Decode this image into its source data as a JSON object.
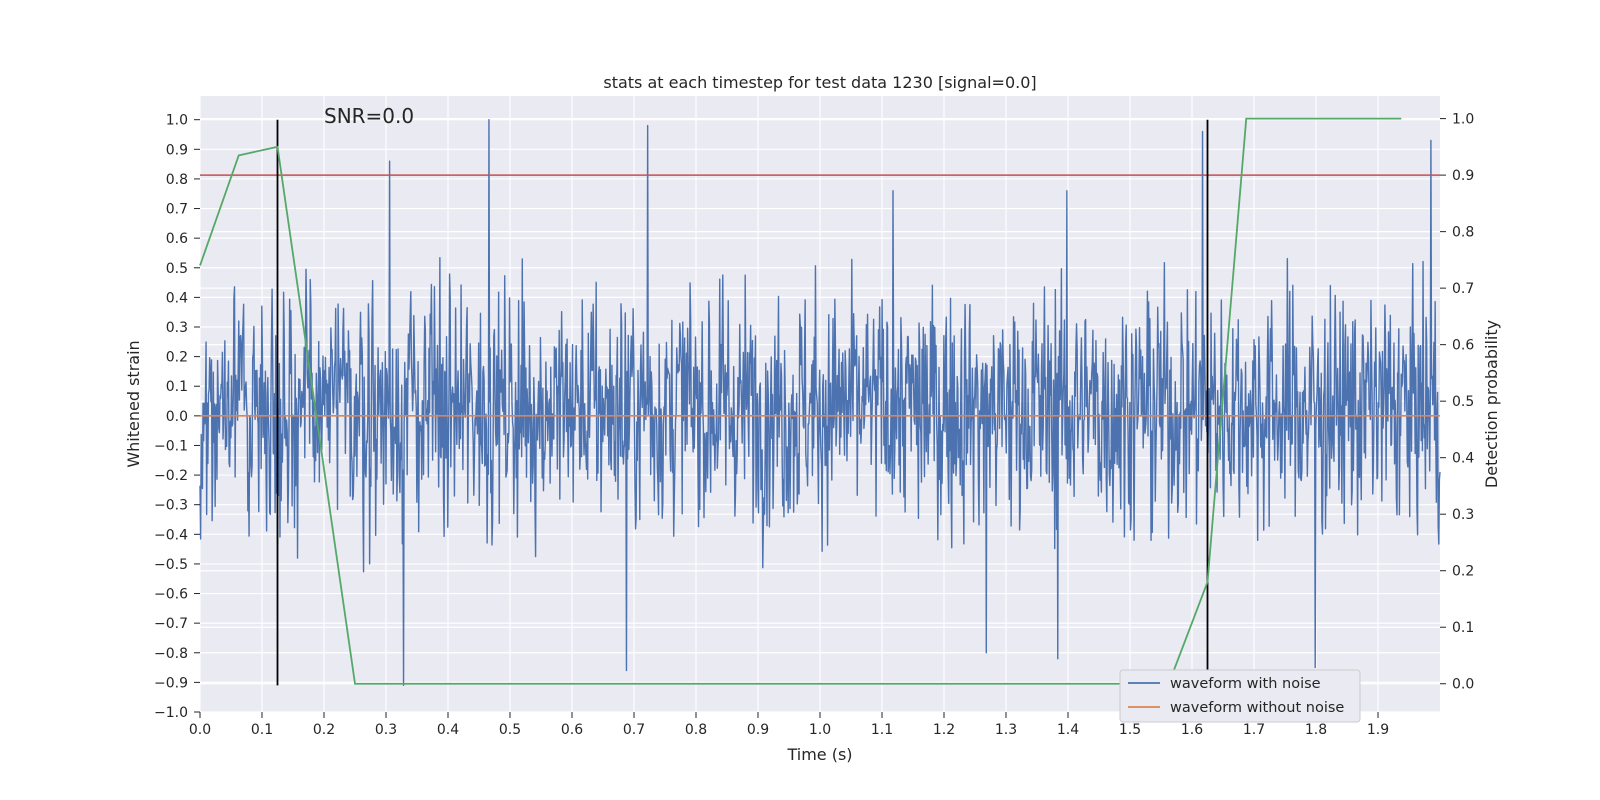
{
  "chart_data": {
    "type": "line",
    "title": "stats at each timestep for test data 1230 [signal=0.0]",
    "annotation": "SNR=0.0",
    "xlabel": "Time (s)",
    "ylabel": "Whitened strain",
    "y2label": "Detection probability",
    "xlim": [
      0.0,
      2.0
    ],
    "ylim": [
      -1.0,
      1.08
    ],
    "y2lim": [
      -0.05,
      1.04
    ],
    "xticks": [
      "0.0",
      "0.1",
      "0.2",
      "0.3",
      "0.4",
      "0.5",
      "0.6",
      "0.7",
      "0.8",
      "0.9",
      "1.0",
      "1.1",
      "1.2",
      "1.3",
      "1.4",
      "1.5",
      "1.6",
      "1.7",
      "1.8",
      "1.9"
    ],
    "yticks": [
      "1.0",
      "0.9",
      "0.8",
      "0.7",
      "0.6",
      "0.5",
      "0.4",
      "0.3",
      "0.2",
      "0.1",
      "0.0",
      "−0.1",
      "−0.2",
      "−0.3",
      "−0.4",
      "−0.5",
      "−0.6",
      "−0.7",
      "−0.8",
      "−0.9",
      "−1.0"
    ],
    "y2ticks": [
      "1.0",
      "0.9",
      "0.8",
      "0.7",
      "0.6",
      "0.5",
      "0.4",
      "0.3",
      "0.2",
      "0.1",
      "0.0"
    ],
    "legend": [
      "waveform with noise",
      "waveform without noise"
    ],
    "legend_loc": "lower right",
    "grid": true,
    "colors": {
      "noisy": "#4c72b0",
      "clean": "#dd8452",
      "prob": "#55a868",
      "threshold": "#c44e52",
      "marker": "#000000",
      "panel_bg": "#eaeaf2",
      "grid": "#ffffff"
    },
    "series": [
      {
        "name": "waveform with noise",
        "axis": "left",
        "n_samples": 2048,
        "value_range": [
          -0.91,
          1.0
        ],
        "peaks": [
          {
            "x": 0.466,
            "y": 1.0
          },
          {
            "x": 0.722,
            "y": 0.98
          },
          {
            "x": 1.617,
            "y": 0.96
          },
          {
            "x": 1.985,
            "y": 0.93
          },
          {
            "x": 0.306,
            "y": 0.86
          },
          {
            "x": 1.398,
            "y": 0.76
          },
          {
            "x": 1.118,
            "y": 0.76
          },
          {
            "x": 0.328,
            "y": -0.91
          },
          {
            "x": 0.688,
            "y": -0.86
          },
          {
            "x": 1.799,
            "y": -0.85
          },
          {
            "x": 1.383,
            "y": -0.82
          },
          {
            "x": 1.268,
            "y": -0.8
          }
        ]
      },
      {
        "name": "waveform without noise",
        "axis": "left",
        "x": [
          0.0,
          2.0
        ],
        "y": [
          0.0,
          0.0
        ]
      },
      {
        "name": "detection probability",
        "axis": "right",
        "x": [
          0.0,
          0.0625,
          0.125,
          0.25,
          0.3125,
          1.5625,
          1.625,
          1.6875,
          1.9375
        ],
        "y": [
          0.74,
          0.935,
          0.95,
          0.0,
          0.0,
          0.0,
          0.18,
          1.0,
          1.0
        ]
      },
      {
        "name": "threshold",
        "axis": "right",
        "x": [
          0.0,
          2.0
        ],
        "y": [
          0.9,
          0.9
        ]
      }
    ],
    "vlines": [
      {
        "x": 0.125,
        "ymin": -0.91,
        "ymax": 1.0
      },
      {
        "x": 1.625,
        "ymin": -0.91,
        "ymax": 1.0
      }
    ]
  }
}
